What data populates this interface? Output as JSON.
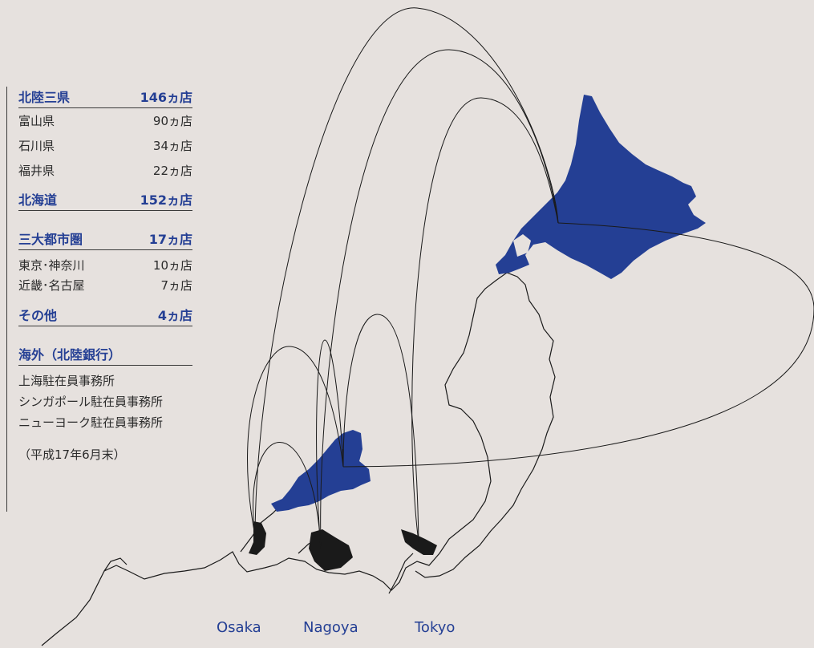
{
  "legend": {
    "hokuriku": {
      "label": "北陸三県",
      "total": "146ヵ店",
      "items": [
        {
          "label": "富山県",
          "value": "90ヵ店"
        },
        {
          "label": "石川県",
          "value": "34ヵ店"
        },
        {
          "label": "福井県",
          "value": "22ヵ店"
        }
      ]
    },
    "hokkaido": {
      "label": "北海道",
      "total": "152ヵ店"
    },
    "metro": {
      "label": "三大都市圏",
      "total": "17ヵ店",
      "items": [
        {
          "label": "東京･神奈川",
          "value": "10ヵ店"
        },
        {
          "label": "近畿･名古屋",
          "value": "7ヵ店"
        }
      ]
    },
    "other": {
      "label": "その他",
      "total": "4ヵ店"
    },
    "overseas": {
      "label": "海外（北陸銀行）",
      "items": [
        "上海駐在員事務所",
        "シンガポール駐在員事務所",
        "ニューヨーク駐在員事務所"
      ]
    },
    "note": "（平成17年6月末）"
  },
  "cities": {
    "osaka": "Osaka",
    "nagoya": "Nagoya",
    "tokyo": "Tokyo"
  },
  "colors": {
    "background": "#e6e1de",
    "highlight_blue": "#243f94",
    "city_black": "#1a1a1a",
    "coastline": "#1a1a1a"
  }
}
